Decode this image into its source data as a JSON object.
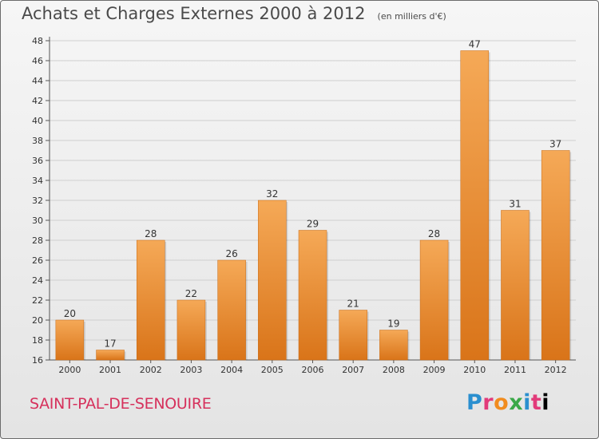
{
  "header": {
    "title": "Achats et Charges Externes 2000 à 2012",
    "unit": "(en milliers d'€)"
  },
  "footer": {
    "commune": "SAINT-PAL-DE-SENOUIRE",
    "logo_letters": [
      "P",
      "r",
      "o",
      "x",
      "i",
      "t",
      "i"
    ]
  },
  "colors": {
    "bar_light": "#f5a957",
    "bar_dark": "#d97419",
    "commune_text": "#d6315c"
  },
  "chart_data": {
    "type": "bar",
    "title": "Achats et Charges Externes 2000 à 2012",
    "subtitle": "(en milliers d'€)",
    "xlabel": "",
    "ylabel": "",
    "categories": [
      "2000",
      "2001",
      "2002",
      "2003",
      "2004",
      "2005",
      "2006",
      "2007",
      "2008",
      "2009",
      "2010",
      "2011",
      "2012"
    ],
    "values": [
      20,
      17,
      28,
      22,
      26,
      32,
      29,
      21,
      19,
      28,
      47,
      31,
      37
    ],
    "ylim": [
      16,
      48
    ],
    "yticks": [
      16,
      18,
      20,
      22,
      24,
      26,
      28,
      30,
      32,
      34,
      36,
      38,
      40,
      42,
      44,
      46,
      48
    ],
    "grid": true,
    "legend": "none"
  }
}
